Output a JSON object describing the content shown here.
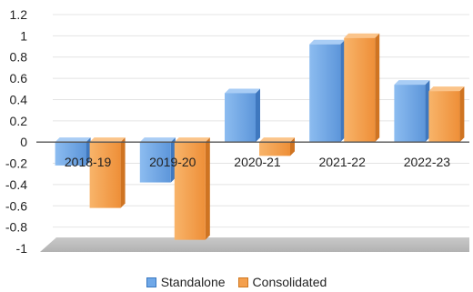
{
  "chart_data": {
    "type": "bar",
    "title": "",
    "xlabel": "",
    "ylabel": "",
    "categories": [
      "2018-19",
      "2019-20",
      "2020-21",
      "2021-22",
      "2022-23"
    ],
    "series": [
      {
        "name": "Standalone",
        "values": [
          -0.22,
          -0.38,
          0.46,
          0.92,
          0.54
        ]
      },
      {
        "name": "Consolidated",
        "values": [
          -0.62,
          -0.92,
          -0.13,
          0.98,
          0.48
        ]
      }
    ],
    "ylim": [
      -1,
      1.2
    ],
    "yticks": [
      "1.2",
      "1",
      "0.8",
      "0.6",
      "0.4",
      "0.2",
      "0",
      "-0.2",
      "-0.4",
      "-0.6",
      "-0.8",
      "-1"
    ],
    "grid": true,
    "legend_position": "bottom",
    "colors": {
      "Standalone": "#6fa8e8",
      "Consolidated": "#f4a04e"
    }
  }
}
